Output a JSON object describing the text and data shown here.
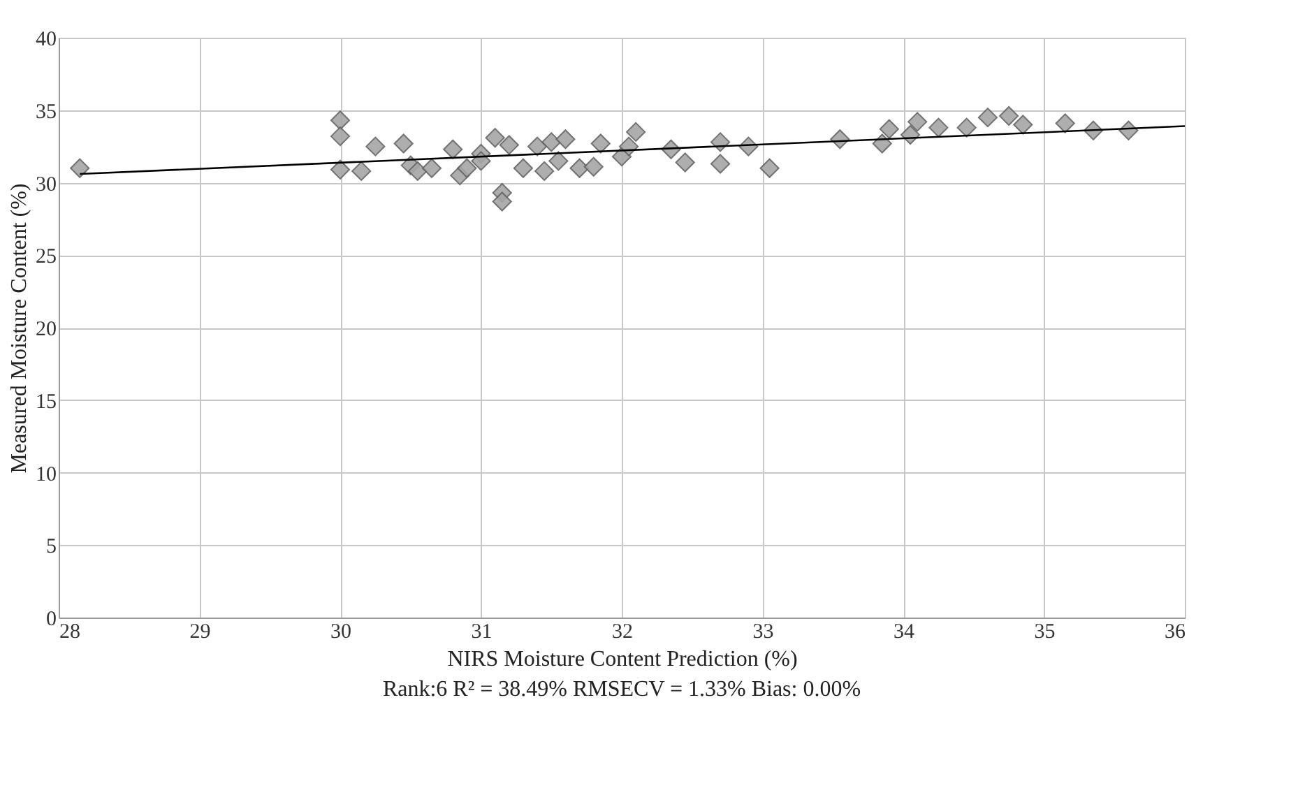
{
  "chart_data": {
    "type": "scatter",
    "xlabel": "NIRS Moisture Content Prediction (%)",
    "ylabel": "Measured Moisture Content (%)",
    "xlim": [
      28,
      36
    ],
    "xticks": [
      28,
      29,
      30,
      31,
      32,
      33,
      34,
      35,
      36
    ],
    "ylim": [
      0,
      40
    ],
    "yticks": [
      0,
      5,
      10,
      15,
      20,
      25,
      30,
      35,
      40
    ],
    "grid": true,
    "marker": "diamond",
    "series": [
      {
        "color": "#a6a6a6",
        "x": [
          28.15,
          30.0,
          30.0,
          30.0,
          30.15,
          30.25,
          30.45,
          30.5,
          30.55,
          30.65,
          30.8,
          30.85,
          30.9,
          31.0,
          31.0,
          31.1,
          31.15,
          31.15,
          31.2,
          31.3,
          31.4,
          31.45,
          31.5,
          31.55,
          31.6,
          31.7,
          31.8,
          31.85,
          32.0,
          32.05,
          32.1,
          32.35,
          32.45,
          32.7,
          32.7,
          32.9,
          33.05,
          33.55,
          33.85,
          33.9,
          34.05,
          34.1,
          34.25,
          34.45,
          34.6,
          34.75,
          34.85,
          35.15,
          35.35,
          35.6
        ],
        "values": [
          31.0,
          34.3,
          33.2,
          30.9,
          30.8,
          32.5,
          32.7,
          31.2,
          30.8,
          31.0,
          32.3,
          30.5,
          31.0,
          32.0,
          31.5,
          33.1,
          29.3,
          28.7,
          32.6,
          31.0,
          32.5,
          30.8,
          32.8,
          31.5,
          33.0,
          31.0,
          31.1,
          32.7,
          31.8,
          32.5,
          33.5,
          32.3,
          31.4,
          32.8,
          31.3,
          32.5,
          31.0,
          33.0,
          32.7,
          33.7,
          33.3,
          34.2,
          33.8,
          33.8,
          34.5,
          34.6,
          34.0,
          34.1,
          33.6,
          33.6
        ]
      },
      {
        "type": "line",
        "color": "#000000",
        "marker": "none",
        "x": [
          28.15,
          36.0
        ],
        "values": [
          30.6,
          33.9
        ]
      }
    ],
    "annotations": [
      "Rank:6  R² = 38.49%  RMSECV = 1.33% Bias: 0.00%"
    ]
  }
}
